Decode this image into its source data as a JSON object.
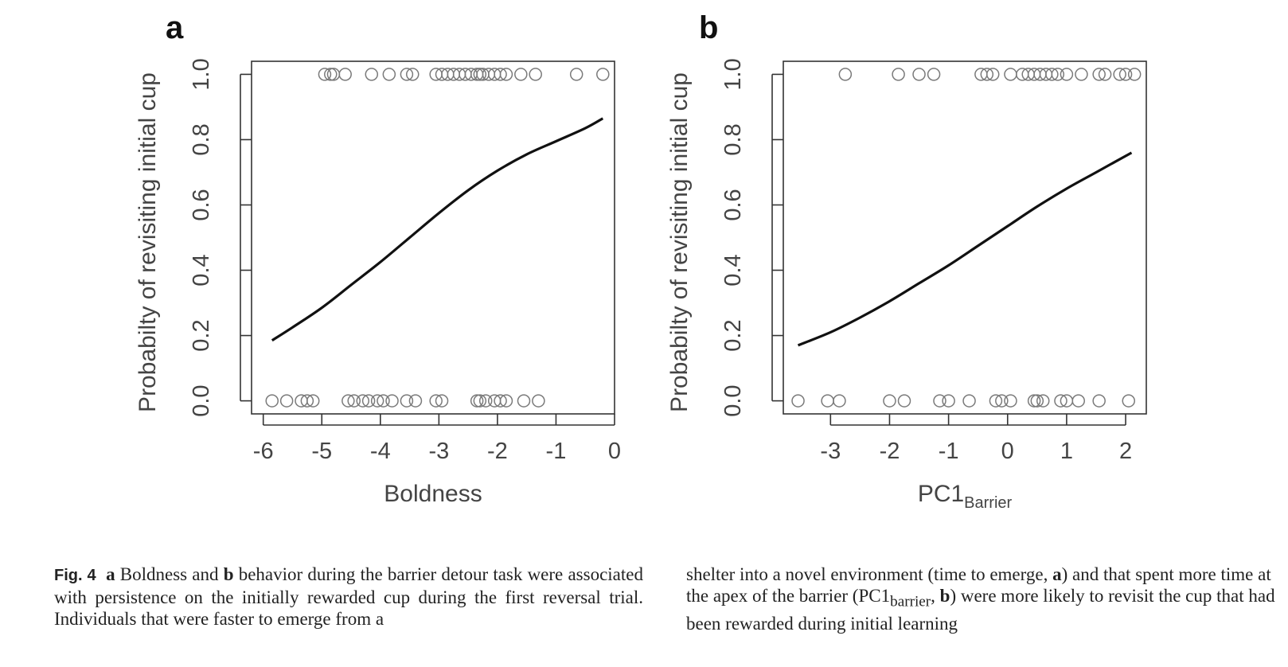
{
  "chart_data": [
    {
      "type": "scatter",
      "panel_label": "a",
      "xlabel": "Boldness",
      "xlabel_sub": "",
      "ylabel": "Probabilty of revisiting initial cup",
      "xlim": [
        -6.2,
        0.0
      ],
      "ylim": [
        -0.04,
        1.04
      ],
      "xticks": [
        -6,
        -5,
        -4,
        -3,
        -2,
        -1,
        0
      ],
      "xtick_labels": [
        "-6",
        "-5",
        "-4",
        "-3",
        "-2",
        "-1",
        "0"
      ],
      "yticks": [
        0.0,
        0.2,
        0.4,
        0.6,
        0.8,
        1.0
      ],
      "ytick_labels": [
        "0.0",
        "0.2",
        "0.4",
        "0.6",
        "0.8",
        "1.0"
      ],
      "points_y1": [
        -4.95,
        -4.85,
        -4.8,
        -4.6,
        -4.15,
        -3.85,
        -3.55,
        -3.45,
        -3.05,
        -2.95,
        -2.85,
        -2.75,
        -2.65,
        -2.55,
        -2.45,
        -2.35,
        -2.3,
        -2.25,
        -2.15,
        -2.05,
        -1.95,
        -1.85,
        -1.6,
        -1.35,
        -0.65,
        -0.2
      ],
      "points_y0": [
        -5.85,
        -5.6,
        -5.35,
        -5.25,
        -5.15,
        -4.55,
        -4.45,
        -4.3,
        -4.2,
        -4.05,
        -3.95,
        -3.8,
        -3.55,
        -3.4,
        -3.05,
        -2.95,
        -2.35,
        -2.3,
        -2.2,
        -2.05,
        -1.95,
        -1.85,
        -1.55,
        -1.3
      ],
      "fit_line": {
        "x": [
          -5.85,
          -5.5,
          -5.0,
          -4.5,
          -4.0,
          -3.5,
          -3.0,
          -2.5,
          -2.0,
          -1.5,
          -1.0,
          -0.5,
          -0.2
        ],
        "y": [
          0.185,
          0.225,
          0.285,
          0.355,
          0.425,
          0.5,
          0.575,
          0.645,
          0.705,
          0.755,
          0.795,
          0.835,
          0.865
        ]
      }
    },
    {
      "type": "scatter",
      "panel_label": "b",
      "xlabel": "PC1",
      "xlabel_sub": "Barrier",
      "ylabel": "Probabilty of revisiting initial cup",
      "xlim": [
        -3.8,
        2.35
      ],
      "ylim": [
        -0.04,
        1.04
      ],
      "xticks": [
        -3,
        -2,
        -1,
        0,
        1,
        2
      ],
      "xtick_labels": [
        "-3",
        "-2",
        "-1",
        "0",
        "1",
        "2"
      ],
      "yticks": [
        0.0,
        0.2,
        0.4,
        0.6,
        0.8,
        1.0
      ],
      "ytick_labels": [
        "0.0",
        "0.2",
        "0.4",
        "0.6",
        "0.8",
        "1.0"
      ],
      "points_y1": [
        -2.75,
        -1.85,
        -1.5,
        -1.25,
        -0.45,
        -0.35,
        -0.25,
        0.05,
        0.25,
        0.35,
        0.45,
        0.55,
        0.65,
        0.75,
        0.85,
        1.0,
        1.25,
        1.55,
        1.65,
        1.9,
        2.0,
        2.15
      ],
      "points_y0": [
        -3.55,
        -3.05,
        -2.85,
        -2.0,
        -1.75,
        -1.15,
        -1.0,
        -0.65,
        -0.2,
        -0.1,
        0.05,
        0.45,
        0.5,
        0.6,
        0.9,
        1.0,
        1.2,
        1.55,
        2.05
      ],
      "fit_line": {
        "x": [
          -3.55,
          -3.0,
          -2.5,
          -2.0,
          -1.5,
          -1.0,
          -0.5,
          0.0,
          0.5,
          1.0,
          1.5,
          2.1
        ],
        "y": [
          0.17,
          0.21,
          0.255,
          0.305,
          0.36,
          0.415,
          0.475,
          0.535,
          0.595,
          0.65,
          0.7,
          0.76
        ]
      }
    }
  ],
  "caption": {
    "label": "Fig. 4",
    "left": {
      "a": "a",
      "t1": " Boldness and ",
      "b": "b",
      "t2": " behavior during the barrier detour task were associated with persistence on the initially rewarded cup during the first reversal trial. Individuals that were faster to emerge from a"
    },
    "right": {
      "t1": "shelter into a novel environment (time to emerge, ",
      "a": "a",
      "t2": ") and that spent more time at the apex of the barrier (PC1",
      "sub": "barrier",
      "t3": ", ",
      "b": "b",
      "t4": ") were more likely to revisit the cup that had been rewarded during initial learning"
    }
  }
}
